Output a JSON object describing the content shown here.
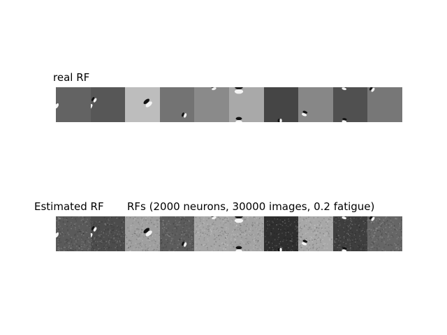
{
  "labels": {
    "real": "real RF",
    "estimated": "Estimated RF",
    "title": "RFs (2000 neurons, 30000 images, 0.2 fatigue)"
  },
  "tiles": {
    "real_backgrounds": [
      "#636363",
      "#575757",
      "#bdbdbd",
      "#737373",
      "#8a8a8a",
      "#a9a9a9",
      "#454545",
      "#878787",
      "#505050",
      "#777777"
    ],
    "estimated_backgrounds": [
      "#5a5a5a",
      "#4c4c4c",
      "#a0a0a0",
      "#5c5c5c",
      "#a6a6a6",
      "#a3a3a3",
      "#2f2f2f",
      "#a8a8a8",
      "#3e3e3e",
      "#666666"
    ]
  }
}
